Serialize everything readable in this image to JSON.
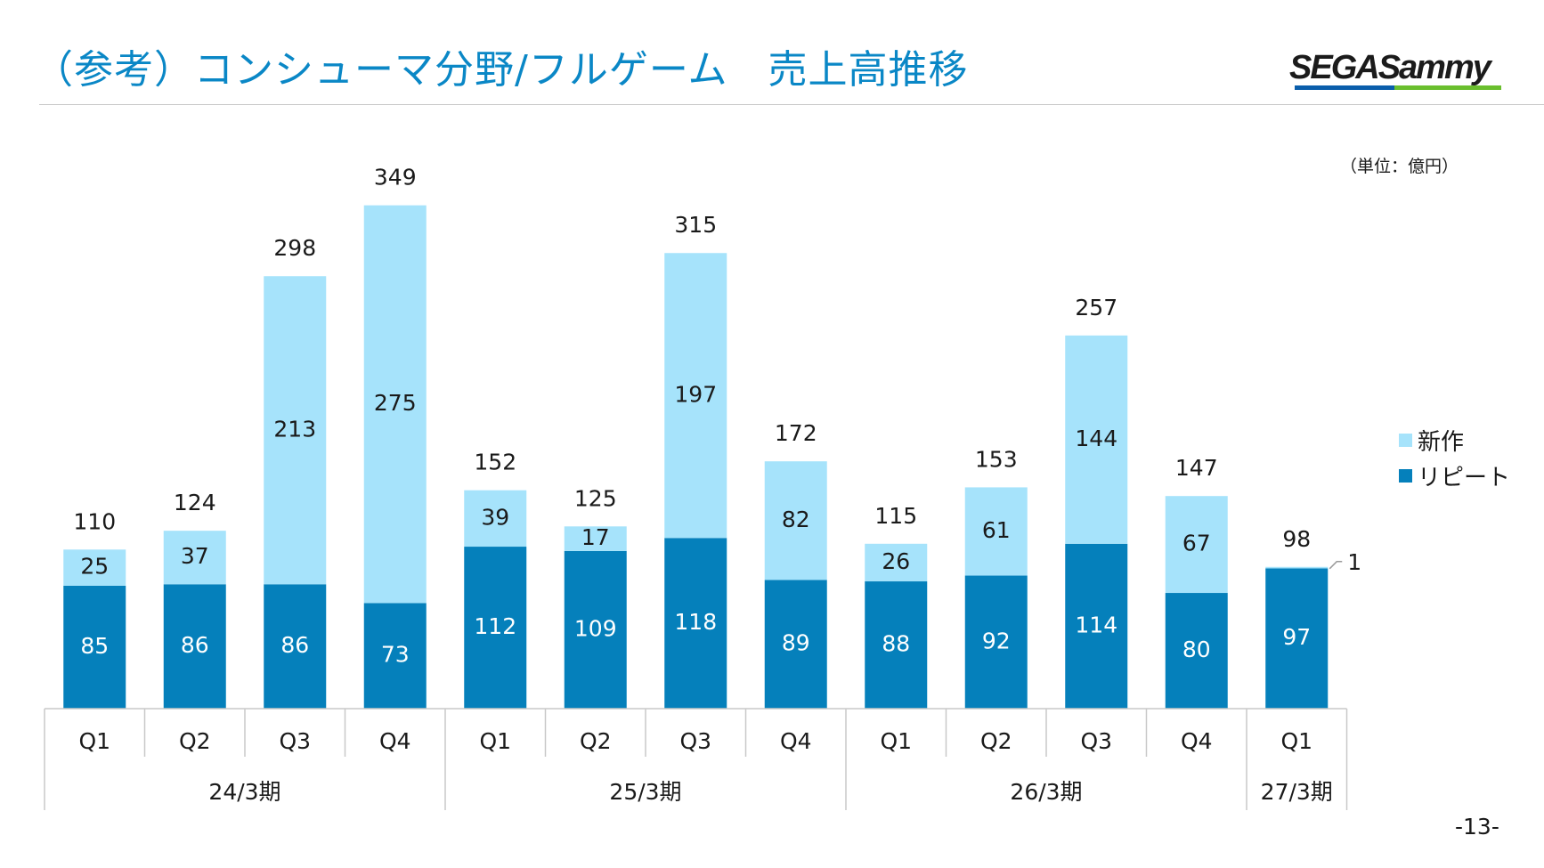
{
  "page": {
    "title": "（参考）コンシューマ分野/フルゲーム　売上高推移",
    "logo_text": "SEGASammy",
    "unit_label": "（単位：億円）",
    "page_number": "-13-"
  },
  "colors": {
    "title": "#0a87c6",
    "new_titles": "#a6e3fb",
    "repeat": "#0580bb"
  },
  "chart_data": {
    "type": "bar",
    "stacked": true,
    "title": "（参考）コンシューマ分野/フルゲーム　売上高推移",
    "unit": "（単位：億円）",
    "categories": [
      "Q1",
      "Q2",
      "Q3",
      "Q4",
      "Q1",
      "Q2",
      "Q3",
      "Q4",
      "Q1",
      "Q2",
      "Q3",
      "Q4",
      "Q1"
    ],
    "groups": [
      {
        "label": "24/3期",
        "count": 4
      },
      {
        "label": "25/3期",
        "count": 4
      },
      {
        "label": "26/3期",
        "count": 4
      },
      {
        "label": "27/3期",
        "count": 1
      }
    ],
    "series": [
      {
        "name": "リピート",
        "color": "#0580bb",
        "values": [
          85,
          86,
          86,
          73,
          112,
          109,
          118,
          89,
          88,
          92,
          114,
          80,
          97
        ]
      },
      {
        "name": "新作",
        "color": "#a6e3fb",
        "values": [
          25,
          37,
          213,
          275,
          39,
          17,
          197,
          82,
          26,
          61,
          144,
          67,
          1
        ]
      }
    ],
    "totals": [
      110,
      124,
      298,
      349,
      152,
      125,
      315,
      172,
      115,
      153,
      257,
      147,
      98
    ],
    "ylim": [
      0,
      349
    ],
    "grid": false,
    "legend": "right",
    "legend_order": [
      "新作",
      "リピート"
    ]
  }
}
